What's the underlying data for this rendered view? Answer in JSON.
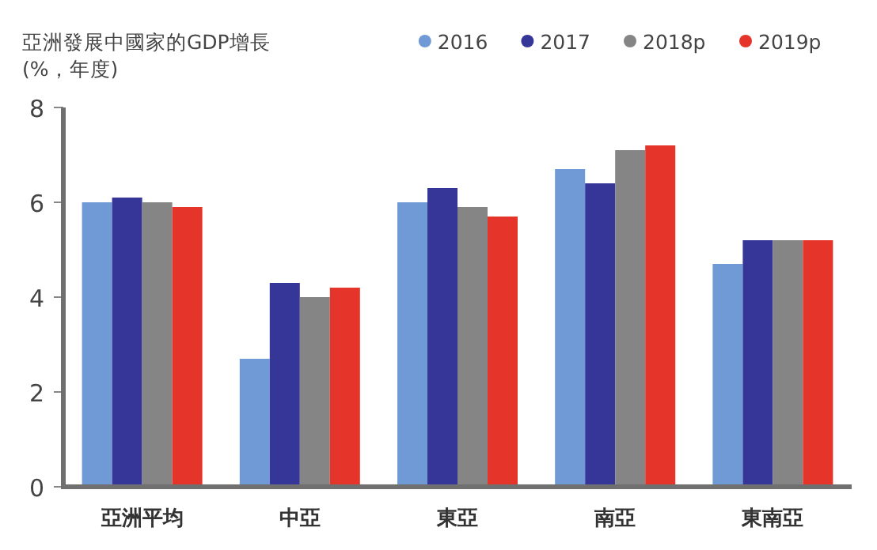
{
  "chart_data": {
    "type": "bar",
    "title": "亞洲發展中國家的GDP增長",
    "subtitle": "(%，年度)",
    "categories": [
      "亞洲平均",
      "中亞",
      "東亞",
      "南亞",
      "東南亞"
    ],
    "series": [
      {
        "name": "2016",
        "color": "#6f9ad6",
        "values": [
          6.0,
          2.7,
          6.0,
          6.7,
          4.7
        ]
      },
      {
        "name": "2017",
        "color": "#363699",
        "values": [
          6.1,
          4.3,
          6.3,
          6.4,
          5.2
        ]
      },
      {
        "name": "2018p",
        "color": "#858585",
        "values": [
          6.0,
          4.0,
          5.9,
          7.1,
          5.2
        ]
      },
      {
        "name": "2019p",
        "color": "#e5342a",
        "values": [
          5.9,
          4.2,
          5.7,
          7.2,
          5.2
        ]
      }
    ],
    "ylim": [
      0,
      8
    ],
    "yticks": [
      0,
      2,
      4,
      6,
      8
    ],
    "grid": false,
    "legend": "top right"
  }
}
